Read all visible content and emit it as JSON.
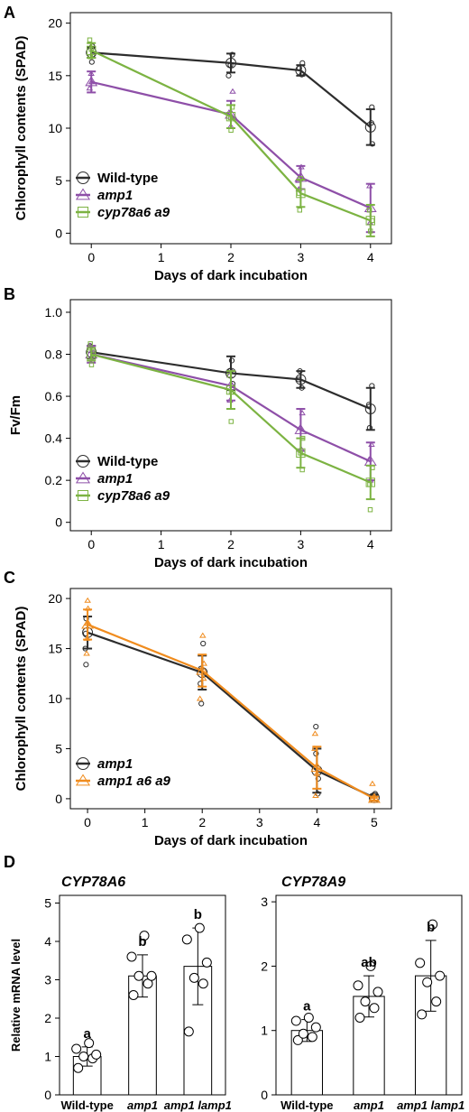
{
  "chart_data": [
    {
      "type": "line",
      "panel": "A",
      "xlabel": "Days of dark incubation",
      "ylabel": "Chlorophyll contents (SPAD)",
      "xlim": [
        -0.3,
        4.3
      ],
      "ylim": [
        -1,
        21
      ],
      "xticks": [
        0,
        1,
        2,
        3,
        4
      ],
      "yticks": [
        0,
        5,
        10,
        15,
        20
      ],
      "legend_position": "bottom-left",
      "series": [
        {
          "name": "Wild-type",
          "italic": false,
          "color": "#2d2d2d",
          "marker": "circle",
          "x": [
            0,
            2,
            3,
            4
          ],
          "y": [
            17.2,
            16.2,
            15.5,
            10.1
          ],
          "err": [
            0.5,
            0.9,
            0.5,
            1.7
          ],
          "points": [
            [
              0,
              16.3
            ],
            [
              0,
              17.0
            ],
            [
              0,
              17.8
            ],
            [
              2,
              15.0
            ],
            [
              2,
              16.0
            ],
            [
              2,
              17.0
            ],
            [
              3,
              15.1
            ],
            [
              3,
              15.7
            ],
            [
              3,
              16.2
            ],
            [
              4,
              8.5
            ],
            [
              4,
              10.5
            ],
            [
              4,
              12.0
            ]
          ]
        },
        {
          "name": "amp1",
          "italic": true,
          "color": "#8e4fa8",
          "marker": "triangle",
          "x": [
            0,
            2,
            3,
            4
          ],
          "y": [
            14.4,
            11.3,
            5.3,
            2.4
          ],
          "err": [
            1.0,
            1.3,
            1.1,
            2.3
          ],
          "points": [
            [
              0,
              13.8
            ],
            [
              0,
              14.4
            ],
            [
              0,
              15.2
            ],
            [
              2,
              10.2
            ],
            [
              2,
              11.5
            ],
            [
              2,
              13.5
            ],
            [
              3,
              4.2
            ],
            [
              3,
              5.0
            ],
            [
              3,
              6.3
            ],
            [
              4,
              1.0
            ],
            [
              4,
              2.2
            ],
            [
              4,
              4.5
            ]
          ]
        },
        {
          "name": "cyp78a6 a9",
          "italic": true,
          "color": "#7cb342",
          "marker": "square",
          "x": [
            0,
            2,
            3,
            4
          ],
          "y": [
            17.4,
            11.1,
            3.8,
            1.2
          ],
          "err": [
            0.7,
            1.1,
            1.3,
            1.5
          ],
          "points": [
            [
              0,
              16.8
            ],
            [
              0,
              17.5
            ],
            [
              0,
              18.4
            ],
            [
              2,
              9.8
            ],
            [
              2,
              11.0
            ],
            [
              2,
              12.0
            ],
            [
              3,
              2.2
            ],
            [
              3,
              3.8
            ],
            [
              3,
              5.2
            ],
            [
              4,
              0.2
            ],
            [
              4,
              1.2
            ],
            [
              4,
              2.2
            ]
          ]
        }
      ]
    },
    {
      "type": "line",
      "panel": "B",
      "xlabel": "Days of dark incubation",
      "ylabel": "Fv/Fm",
      "xlim": [
        -0.3,
        4.3
      ],
      "ylim": [
        -0.04,
        1.06
      ],
      "xticks": [
        0,
        1,
        2,
        3,
        4
      ],
      "yticks": [
        0,
        0.2,
        0.4,
        0.6,
        0.8,
        1.0
      ],
      "ytick_labels": [
        "0",
        "0.2",
        "0.4",
        "0.6",
        "0.8",
        "1.0"
      ],
      "legend_position": "bottom-left",
      "series": [
        {
          "name": "Wild-type",
          "italic": false,
          "color": "#2d2d2d",
          "marker": "circle",
          "x": [
            0,
            2,
            3,
            4
          ],
          "y": [
            0.81,
            0.71,
            0.68,
            0.54
          ],
          "err": [
            0.03,
            0.08,
            0.04,
            0.1
          ],
          "points": [
            [
              0,
              0.79
            ],
            [
              0,
              0.82
            ],
            [
              0,
              0.84
            ],
            [
              2,
              0.66
            ],
            [
              2,
              0.72
            ],
            [
              2,
              0.77
            ],
            [
              3,
              0.64
            ],
            [
              3,
              0.68
            ],
            [
              3,
              0.72
            ],
            [
              4,
              0.45
            ],
            [
              4,
              0.56
            ],
            [
              4,
              0.65
            ]
          ]
        },
        {
          "name": "amp1",
          "italic": true,
          "color": "#8e4fa8",
          "marker": "triangle",
          "x": [
            0,
            2,
            3,
            4
          ],
          "y": [
            0.8,
            0.65,
            0.44,
            0.29
          ],
          "err": [
            0.04,
            0.07,
            0.1,
            0.09
          ],
          "points": [
            [
              0,
              0.77
            ],
            [
              0,
              0.81
            ],
            [
              0,
              0.84
            ],
            [
              2,
              0.58
            ],
            [
              2,
              0.65
            ],
            [
              2,
              0.7
            ],
            [
              3,
              0.35
            ],
            [
              3,
              0.45
            ],
            [
              3,
              0.52
            ],
            [
              4,
              0.2
            ],
            [
              4,
              0.3
            ],
            [
              4,
              0.37
            ]
          ]
        },
        {
          "name": "cyp78a6 a9",
          "italic": true,
          "color": "#7cb342",
          "marker": "square",
          "x": [
            0,
            2,
            3,
            4
          ],
          "y": [
            0.8,
            0.63,
            0.33,
            0.19
          ],
          "err": [
            0.03,
            0.09,
            0.07,
            0.08
          ],
          "points": [
            [
              0,
              0.75
            ],
            [
              0,
              0.8
            ],
            [
              0,
              0.85
            ],
            [
              2,
              0.48
            ],
            [
              2,
              0.62
            ],
            [
              2,
              0.7
            ],
            [
              3,
              0.25
            ],
            [
              3,
              0.33
            ],
            [
              3,
              0.4
            ],
            [
              4,
              0.06
            ],
            [
              4,
              0.18
            ],
            [
              4,
              0.26
            ]
          ]
        }
      ]
    },
    {
      "type": "line",
      "panel": "C",
      "xlabel": "Days of dark incubation",
      "ylabel": "Chlorophyll contents (SPAD)",
      "xlim": [
        -0.3,
        5.3
      ],
      "ylim": [
        -1,
        21
      ],
      "xticks": [
        0,
        1,
        2,
        3,
        4,
        5
      ],
      "yticks": [
        0,
        5,
        10,
        15,
        20
      ],
      "legend_position": "bottom-left",
      "series": [
        {
          "name": "amp1",
          "italic": true,
          "color": "#2d2d2d",
          "marker": "circle",
          "x": [
            0,
            2,
            4,
            5
          ],
          "y": [
            16.6,
            12.6,
            2.8,
            0.1
          ],
          "err": [
            1.6,
            1.7,
            2.2,
            0.3
          ],
          "points": [
            [
              0,
              13.4
            ],
            [
              0,
              15.0
            ],
            [
              0,
              16.5
            ],
            [
              0,
              18.0
            ],
            [
              2,
              9.5
            ],
            [
              2,
              11.5
            ],
            [
              2,
              13.0
            ],
            [
              2,
              15.5
            ],
            [
              4,
              0.5
            ],
            [
              4,
              2.0
            ],
            [
              4,
              4.5
            ],
            [
              4,
              7.2
            ],
            [
              5,
              0.0
            ],
            [
              5,
              0.3
            ],
            [
              5,
              0.5
            ]
          ]
        },
        {
          "name": "amp1 a6 a9",
          "italic": true,
          "color": "#f08c1e",
          "marker": "triangle",
          "x": [
            0,
            2,
            4,
            5
          ],
          "y": [
            17.4,
            12.8,
            3.1,
            0.0
          ],
          "err": [
            1.5,
            1.6,
            2.1,
            0.2
          ],
          "points": [
            [
              0,
              14.5
            ],
            [
              0,
              16.0
            ],
            [
              0,
              17.5
            ],
            [
              0,
              19.0
            ],
            [
              0,
              19.8
            ],
            [
              2,
              10.0
            ],
            [
              2,
              12.0
            ],
            [
              2,
              13.5
            ],
            [
              2,
              16.3
            ],
            [
              4,
              0.3
            ],
            [
              4,
              2.5
            ],
            [
              4,
              5.0
            ],
            [
              4,
              6.5
            ],
            [
              5,
              0.0
            ],
            [
              5,
              0.2
            ],
            [
              5,
              1.5
            ]
          ]
        }
      ]
    },
    {
      "type": "bar",
      "panel": "D",
      "title": "CYP78A6",
      "ylabel": "Relative mRNA level",
      "ylim": [
        0,
        5.2
      ],
      "yticks": [
        0,
        1,
        2,
        3,
        4,
        5
      ],
      "categories": [
        "Wild-type",
        "amp1",
        "amp1 lamp1"
      ],
      "category_italic": [
        false,
        true,
        true
      ],
      "values": [
        1.0,
        3.1,
        3.35
      ],
      "err": [
        0.25,
        0.55,
        1.0
      ],
      "significance": [
        "a",
        "b",
        "b"
      ],
      "points": [
        [
          0.7,
          0.95,
          1.0,
          1.05,
          1.2,
          1.35
        ],
        [
          2.6,
          2.9,
          3.1,
          3.1,
          3.6,
          4.15
        ],
        [
          1.65,
          2.9,
          3.05,
          3.45,
          4.05,
          4.35
        ]
      ]
    },
    {
      "type": "bar",
      "panel": "D",
      "title": "CYP78A9",
      "ylabel": "",
      "ylim": [
        0,
        3.1
      ],
      "yticks": [
        0,
        1,
        2,
        3
      ],
      "categories": [
        "Wild-type",
        "amp1",
        "amp1 lamp1"
      ],
      "category_italic": [
        false,
        true,
        true
      ],
      "values": [
        1.0,
        1.53,
        1.85
      ],
      "err": [
        0.17,
        0.32,
        0.55
      ],
      "significance": [
        "a",
        "ab",
        "b"
      ],
      "points": [
        [
          0.85,
          0.9,
          0.95,
          1.05,
          1.15,
          1.2
        ],
        [
          1.2,
          1.35,
          1.45,
          1.6,
          1.7,
          2.0
        ],
        [
          1.25,
          1.45,
          1.75,
          1.85,
          2.05,
          2.65
        ]
      ]
    }
  ]
}
